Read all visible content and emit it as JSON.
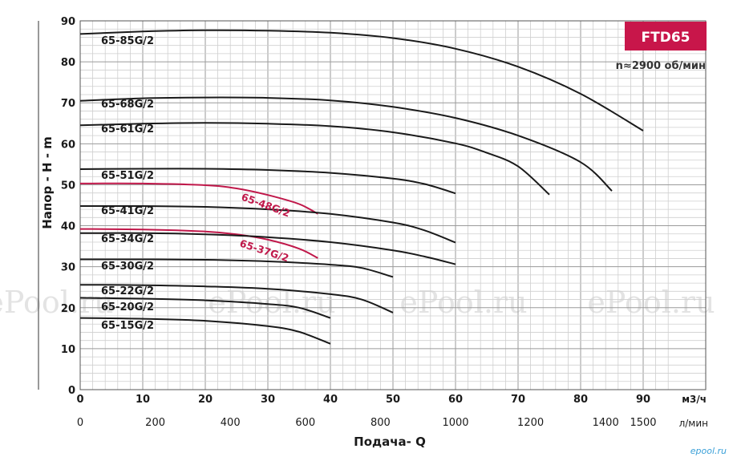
{
  "chart_data": {
    "type": "line",
    "badge": "FTD65",
    "speed_note": "n≈2900 об/мин",
    "ylabel": "Напор - H - m",
    "xlabel": "Подача- Q",
    "x_unit": "м3/ч",
    "x2_unit": "л/мин",
    "ylim": [
      0,
      90
    ],
    "xlim": [
      0,
      95
    ],
    "y_ticks": [
      0,
      10,
      20,
      30,
      40,
      50,
      60,
      70,
      80,
      90
    ],
    "x_ticks": [
      0,
      10,
      20,
      30,
      40,
      50,
      60,
      70,
      80,
      90
    ],
    "x2_ticks": [
      {
        "label": "0",
        "lpm": 0
      },
      {
        "label": "200",
        "lpm": 200
      },
      {
        "label": "400",
        "lpm": 400
      },
      {
        "label": "600",
        "lpm": 600
      },
      {
        "label": "800",
        "lpm": 800
      },
      {
        "label": "1000",
        "lpm": 1000
      },
      {
        "label": "1200",
        "lpm": 1200
      },
      {
        "label": "1400",
        "lpm": 1400
      },
      {
        "label": "1500",
        "lpm": 1500
      }
    ],
    "grid": true,
    "watermarks": [
      "ePool.ru",
      "ePool.ru",
      "ePool.ru",
      "ePool.ru"
    ],
    "logo": "epool.ru",
    "series": [
      {
        "name": "65-85G/2",
        "color": "#1a1a1a",
        "points": [
          [
            0,
            86.8
          ],
          [
            10,
            87.4
          ],
          [
            20,
            87.7
          ],
          [
            30,
            87.6
          ],
          [
            40,
            87.1
          ],
          [
            50,
            85.8
          ],
          [
            60,
            83.2
          ],
          [
            70,
            78.8
          ],
          [
            80,
            72.2
          ],
          [
            90,
            63.2
          ]
        ]
      },
      {
        "name": "65-68G/2",
        "color": "#1a1a1a",
        "points": [
          [
            0,
            70.5
          ],
          [
            10,
            71.1
          ],
          [
            20,
            71.3
          ],
          [
            30,
            71.2
          ],
          [
            40,
            70.6
          ],
          [
            50,
            69.0
          ],
          [
            60,
            66.3
          ],
          [
            70,
            62.0
          ],
          [
            80,
            55.5
          ],
          [
            85,
            48.5
          ]
        ]
      },
      {
        "name": "65-61G/2",
        "color": "#1a1a1a",
        "points": [
          [
            0,
            64.5
          ],
          [
            10,
            64.9
          ],
          [
            20,
            65.1
          ],
          [
            30,
            64.9
          ],
          [
            40,
            64.3
          ],
          [
            50,
            62.8
          ],
          [
            60,
            60.1
          ],
          [
            65,
            57.8
          ],
          [
            70,
            54.5
          ],
          [
            75,
            47.6
          ]
        ]
      },
      {
        "name": "65-51G/2",
        "color": "#1a1a1a",
        "points": [
          [
            0,
            53.8
          ],
          [
            10,
            53.9
          ],
          [
            20,
            53.9
          ],
          [
            30,
            53.6
          ],
          [
            40,
            52.9
          ],
          [
            50,
            51.5
          ],
          [
            55,
            50.2
          ],
          [
            60,
            47.9
          ]
        ]
      },
      {
        "name": "65-48G/2",
        "color": "#c0184a",
        "points": [
          [
            0,
            50.3
          ],
          [
            10,
            50.3
          ],
          [
            20,
            49.9
          ],
          [
            25,
            49.1
          ],
          [
            30,
            47.5
          ],
          [
            35,
            45.3
          ],
          [
            38,
            42.9
          ]
        ]
      },
      {
        "name": "65-41G/2",
        "color": "#1a1a1a",
        "points": [
          [
            0,
            44.8
          ],
          [
            10,
            44.8
          ],
          [
            20,
            44.6
          ],
          [
            30,
            44.0
          ],
          [
            40,
            42.9
          ],
          [
            50,
            40.8
          ],
          [
            55,
            38.9
          ],
          [
            60,
            35.9
          ]
        ]
      },
      {
        "name": "65-37G/2",
        "color": "#c0184a",
        "points": [
          [
            0,
            39.2
          ],
          [
            10,
            39.1
          ],
          [
            20,
            38.6
          ],
          [
            25,
            37.9
          ],
          [
            30,
            36.6
          ],
          [
            35,
            34.4
          ],
          [
            38,
            32.1
          ]
        ]
      },
      {
        "name": "65-34G/2",
        "color": "#1a1a1a",
        "points": [
          [
            0,
            38.2
          ],
          [
            10,
            38.2
          ],
          [
            20,
            37.9
          ],
          [
            30,
            37.2
          ],
          [
            40,
            36.0
          ],
          [
            50,
            34.0
          ],
          [
            55,
            32.5
          ],
          [
            60,
            30.6
          ]
        ]
      },
      {
        "name": "65-30G/2",
        "color": "#1a1a1a",
        "points": [
          [
            0,
            31.8
          ],
          [
            10,
            31.8
          ],
          [
            20,
            31.7
          ],
          [
            30,
            31.3
          ],
          [
            40,
            30.5
          ],
          [
            45,
            29.7
          ],
          [
            50,
            27.5
          ]
        ]
      },
      {
        "name": "65-22G/2",
        "color": "#1a1a1a",
        "points": [
          [
            0,
            25.6
          ],
          [
            10,
            25.5
          ],
          [
            20,
            25.2
          ],
          [
            30,
            24.6
          ],
          [
            40,
            23.3
          ],
          [
            45,
            22.0
          ],
          [
            50,
            18.8
          ]
        ]
      },
      {
        "name": "65-20G/2",
        "color": "#1a1a1a",
        "points": [
          [
            0,
            22.4
          ],
          [
            10,
            22.2
          ],
          [
            20,
            21.8
          ],
          [
            30,
            20.9
          ],
          [
            35,
            20.0
          ],
          [
            40,
            17.5
          ]
        ]
      },
      {
        "name": "65-15G/2",
        "color": "#1a1a1a",
        "points": [
          [
            0,
            17.5
          ],
          [
            10,
            17.3
          ],
          [
            20,
            16.8
          ],
          [
            30,
            15.5
          ],
          [
            35,
            14.1
          ],
          [
            40,
            11.2
          ]
        ]
      }
    ]
  }
}
